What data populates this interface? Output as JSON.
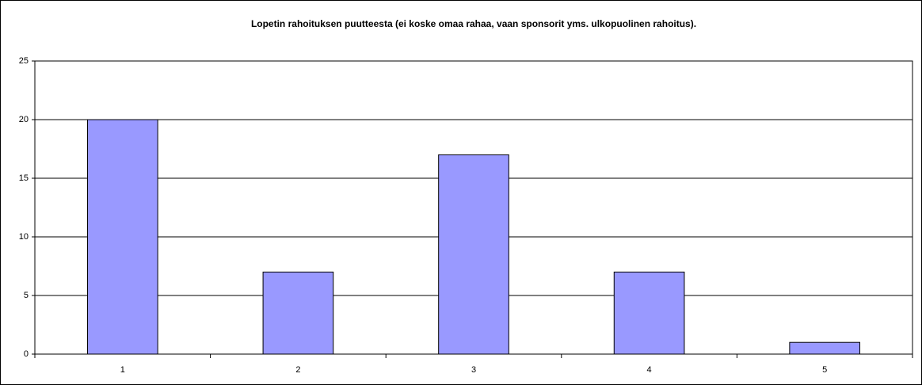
{
  "chart_data": {
    "type": "bar",
    "title": "Lopetin rahoituksen puutteesta (ei koske omaa rahaa, vaan sponsorit yms. ulkopuolinen rahoitus).",
    "categories": [
      "1",
      "2",
      "3",
      "4",
      "5"
    ],
    "values": [
      20,
      7,
      17,
      7,
      1
    ],
    "color": "#9999ff",
    "ylim": [
      0,
      25
    ],
    "yticks": [
      0,
      5,
      10,
      15,
      20,
      25
    ],
    "grid": true
  }
}
